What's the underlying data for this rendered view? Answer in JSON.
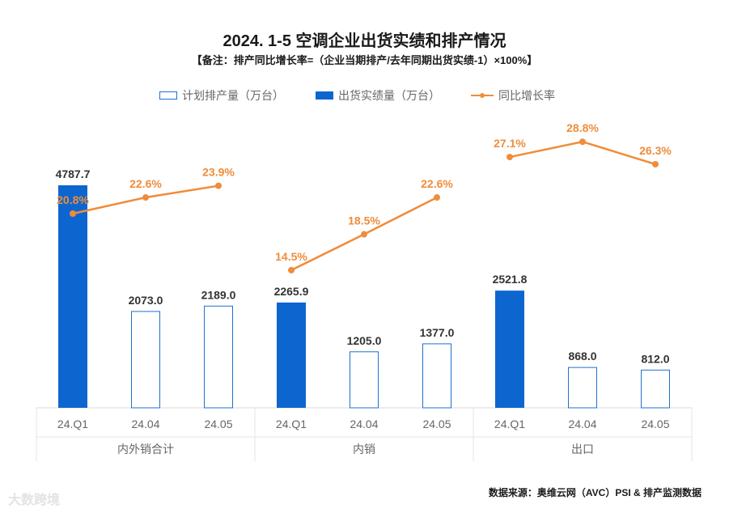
{
  "chart_data": {
    "type": "bar",
    "title": "2024. 1-5  空调企业出货实绩和排产情况",
    "subtitle": "【备注：排产同比增长率=（企业当期排产/去年同期出货实绩-1）×100%】",
    "legend": [
      {
        "name": "计划排产量（万台）",
        "style": "hollow-bar",
        "color": "#1f6fd1"
      },
      {
        "name": "出货实绩量（万台）",
        "style": "solid-bar",
        "color": "#0d66d0"
      },
      {
        "name": "同比增长率",
        "style": "line",
        "color": "#f08c3a"
      }
    ],
    "groups": [
      {
        "name": "内外销合计",
        "categories": [
          "24.Q1",
          "24.04",
          "24.05"
        ],
        "values": [
          4787.7,
          2073.0,
          2189.0
        ],
        "value_labels": [
          "4787.7",
          "2073.0",
          "2189.0"
        ],
        "bar_styles": [
          "solid",
          "hollow",
          "hollow"
        ],
        "rates": [
          20.8,
          22.6,
          23.9
        ],
        "rate_labels": [
          "20.8%",
          "22.6%",
          "23.9%"
        ]
      },
      {
        "name": "内销",
        "categories": [
          "24.Q1",
          "24.04",
          "24.05"
        ],
        "values": [
          2265.9,
          1205.0,
          1377.0
        ],
        "value_labels": [
          "2265.9",
          "1205.0",
          "1377.0"
        ],
        "bar_styles": [
          "solid",
          "hollow",
          "hollow"
        ],
        "rates": [
          14.5,
          18.5,
          22.6
        ],
        "rate_labels": [
          "14.5%",
          "18.5%",
          "22.6%"
        ]
      },
      {
        "name": "出口",
        "categories": [
          "24.Q1",
          "24.04",
          "24.05"
        ],
        "values": [
          2521.8,
          868.0,
          812.0
        ],
        "value_labels": [
          "2521.8",
          "868.0",
          "812.0"
        ],
        "bar_styles": [
          "solid",
          "hollow",
          "hollow"
        ],
        "rates": [
          27.1,
          28.8,
          26.3
        ],
        "rate_labels": [
          "27.1%",
          "28.8%",
          "26.3%"
        ]
      }
    ],
    "ylim": [
      0,
      5000
    ],
    "xlabel": "",
    "ylabel": "",
    "grid": false,
    "legend_position": "top"
  },
  "source": "数据来源：奥维云网（AVC）PSI & 排产监测数据",
  "watermark": "大数跨境",
  "colors": {
    "solid_bar": "#0d66d0",
    "hollow_bar_border": "#1f6fd1",
    "rate_line": "#f08c3a",
    "axis_text": "#666666"
  }
}
